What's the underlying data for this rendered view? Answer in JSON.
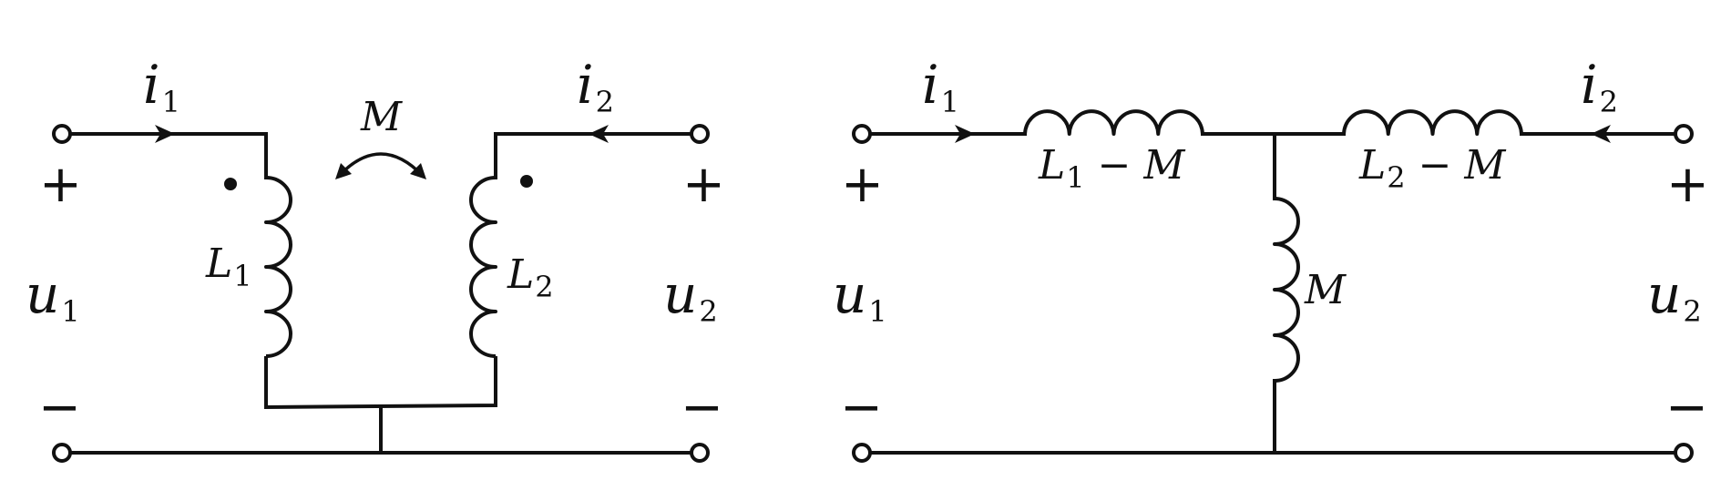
{
  "left_circuit": {
    "current_in": {
      "base": "i",
      "sub": "1"
    },
    "current_out": {
      "base": "i",
      "sub": "2"
    },
    "mutual_label": "M",
    "inductor_1": {
      "base": "L",
      "sub": "1"
    },
    "inductor_2": {
      "base": "L",
      "sub": "2"
    },
    "voltage_1": {
      "base": "u",
      "sub": "1"
    },
    "voltage_2": {
      "base": "u",
      "sub": "2"
    },
    "plus_sign": "+",
    "minus_sign": "−"
  },
  "right_circuit": {
    "current_in": {
      "base": "i",
      "sub": "1"
    },
    "current_out": {
      "base": "i",
      "sub": "2"
    },
    "series_inductor_1": {
      "base": "L",
      "sub": "1",
      "rest": " − M"
    },
    "series_inductor_2": {
      "base": "L",
      "sub": "2",
      "rest": " − M"
    },
    "shunt_inductor": "M",
    "voltage_1": {
      "base": "u",
      "sub": "1"
    },
    "voltage_2": {
      "base": "u",
      "sub": "2"
    },
    "plus_sign": "+",
    "minus_sign": "−"
  },
  "colors": {
    "ink": "#111111",
    "background": "#ffffff"
  }
}
